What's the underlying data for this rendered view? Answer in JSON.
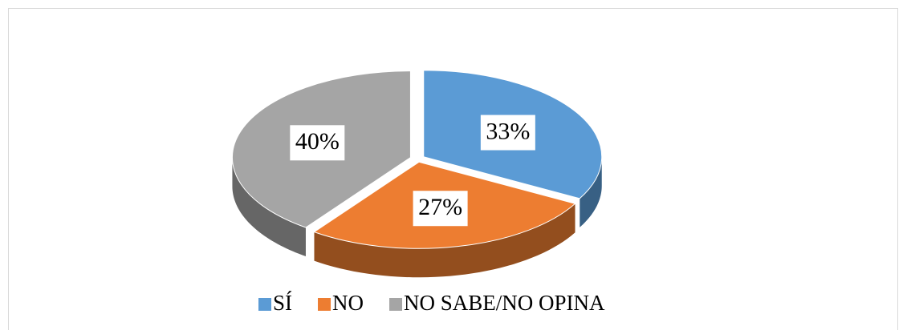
{
  "chart_data": {
    "type": "pie",
    "categories": [
      "SÍ",
      "NO",
      "NO SABE/NO OPINA"
    ],
    "values": [
      33,
      27,
      40
    ],
    "value_labels": [
      "33%",
      "27%",
      "40%"
    ],
    "colors": [
      "#5b9bd5",
      "#ed7d31",
      "#a5a5a5"
    ],
    "legend": "bottom"
  }
}
